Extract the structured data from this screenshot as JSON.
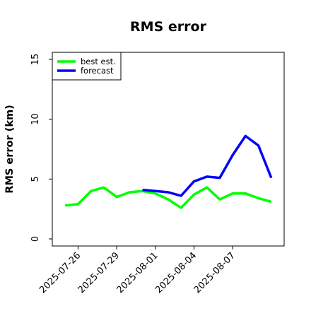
{
  "chart_data": {
    "type": "line",
    "title": "RMS error",
    "xlabel": "",
    "ylabel": "RMS error (km)",
    "ylim": [
      0,
      15
    ],
    "yticks": [
      0,
      5,
      10,
      15
    ],
    "xlim": [
      "2025-07-24",
      "2025-08-11"
    ],
    "xticks": [
      "2025-07-26",
      "2025-07-29",
      "2025-08-01",
      "2025-08-04",
      "2025-08-07"
    ],
    "grid": false,
    "legend": {
      "placement": "top-left"
    },
    "series": [
      {
        "name": "best est.",
        "color": "#00ff00",
        "x": [
          "2025-07-25",
          "2025-07-26",
          "2025-07-27",
          "2025-07-28",
          "2025-07-29",
          "2025-07-30",
          "2025-07-31",
          "2025-08-01",
          "2025-08-02",
          "2025-08-03",
          "2025-08-04",
          "2025-08-05",
          "2025-08-06",
          "2025-08-07",
          "2025-08-08",
          "2025-08-09",
          "2025-08-10"
        ],
        "values": [
          2.8,
          2.9,
          4.0,
          4.3,
          3.5,
          3.9,
          4.0,
          3.8,
          3.3,
          2.6,
          3.7,
          4.3,
          3.3,
          3.8,
          3.8,
          3.4,
          3.1
        ]
      },
      {
        "name": "forecast",
        "color": "#0000ff",
        "x": [
          "2025-07-31",
          "2025-08-01",
          "2025-08-02",
          "2025-08-03",
          "2025-08-04",
          "2025-08-05",
          "2025-08-06",
          "2025-08-07",
          "2025-08-08",
          "2025-08-09",
          "2025-08-10"
        ],
        "values": [
          4.1,
          4.0,
          3.9,
          3.6,
          4.8,
          5.2,
          5.1,
          7.0,
          8.6,
          7.8,
          5.1
        ]
      }
    ]
  }
}
